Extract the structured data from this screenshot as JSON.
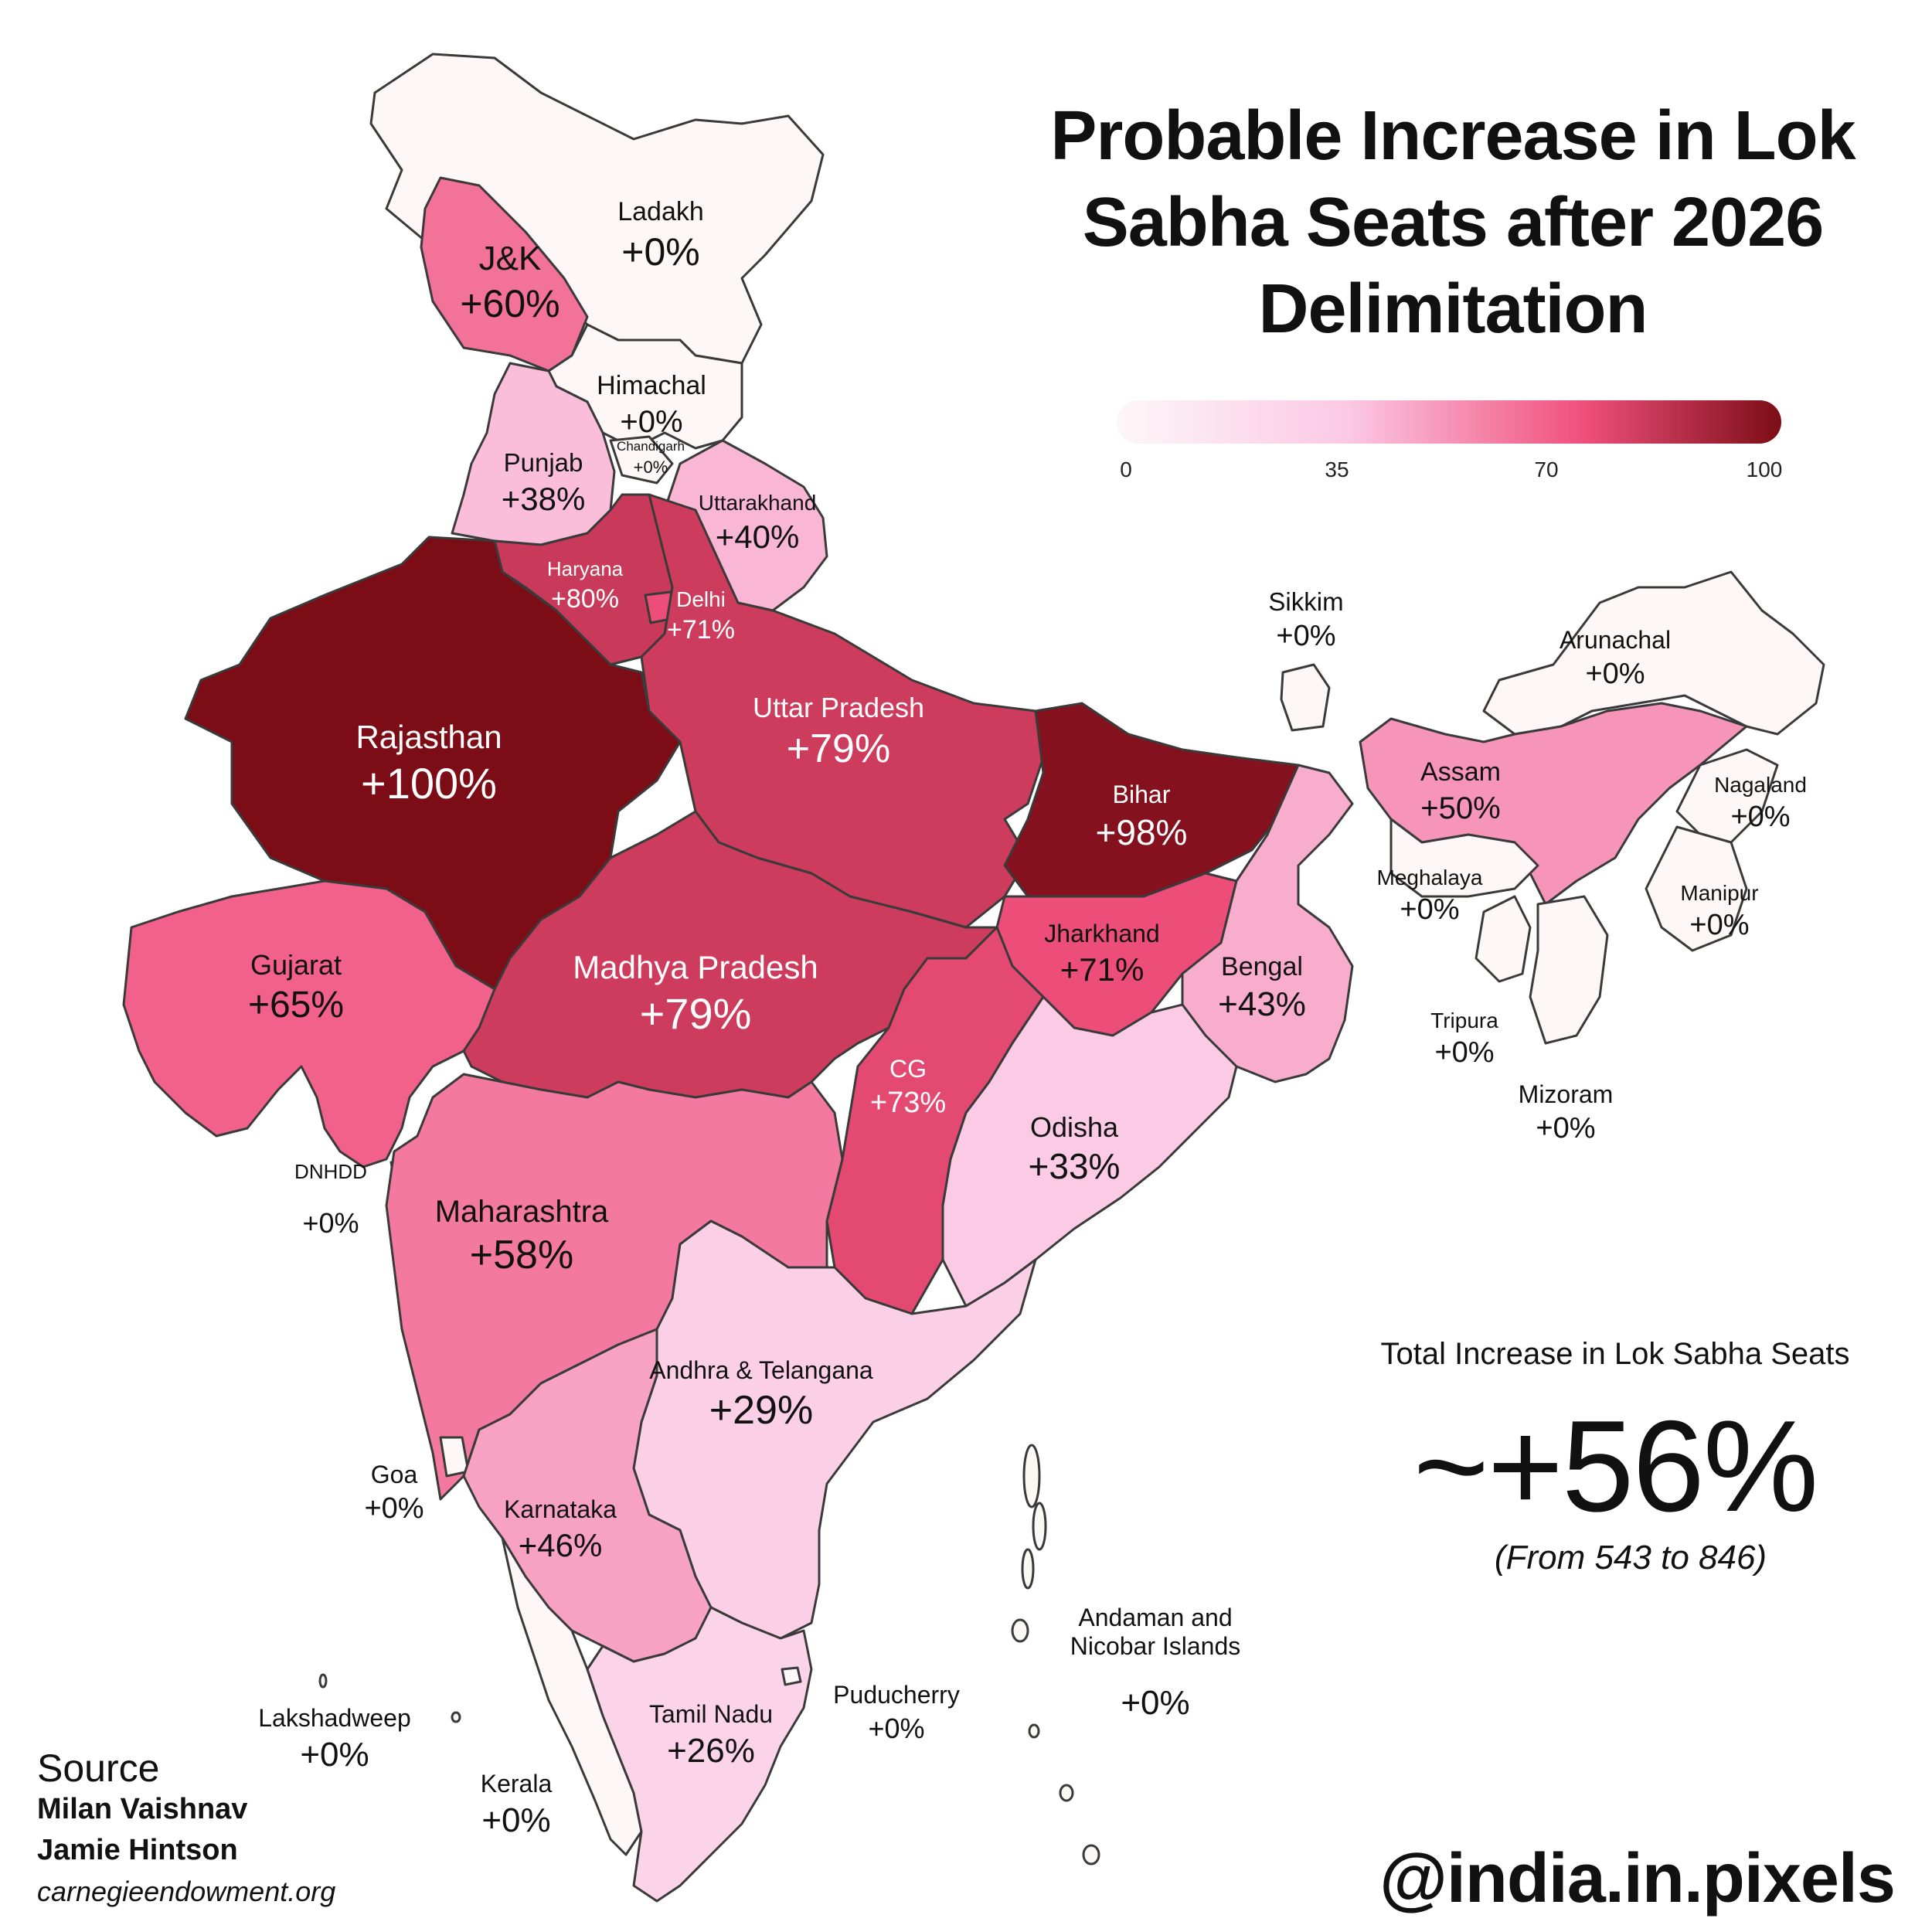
{
  "title": "Probable Increase in Lok Sabha Seats after 2026 Delimitation",
  "legend": {
    "ticks": [
      "0",
      "35",
      "70",
      "100"
    ],
    "colors": [
      "#fdf7f8",
      "#fbc8e4",
      "#f0507c",
      "#7c0d16"
    ]
  },
  "total": {
    "label": "Total Increase in Lok Sabha Seats",
    "value": "~+56%",
    "detail": "(From 543 to 846)"
  },
  "source": {
    "heading": "Source",
    "authors": [
      "Milan Vaishnav",
      "Jamie Hintson"
    ],
    "site": "carnegieendowment.org"
  },
  "handle": "@india.in.pixels",
  "regions": [
    {
      "name": "Ladakh",
      "pct": "+0%",
      "value": 0
    },
    {
      "name": "J&K",
      "pct": "+60%",
      "value": 60
    },
    {
      "name": "Himachal",
      "pct": "+0%",
      "value": 0
    },
    {
      "name": "Chandigarh",
      "pct": "+0%",
      "value": 0
    },
    {
      "name": "Punjab",
      "pct": "+38%",
      "value": 38
    },
    {
      "name": "Uttarakhand",
      "pct": "+40%",
      "value": 40
    },
    {
      "name": "Haryana",
      "pct": "+80%",
      "value": 80
    },
    {
      "name": "Delhi",
      "pct": "+71%",
      "value": 71
    },
    {
      "name": "Rajasthan",
      "pct": "+100%",
      "value": 100
    },
    {
      "name": "Uttar Pradesh",
      "pct": "+79%",
      "value": 79
    },
    {
      "name": "Bihar",
      "pct": "+98%",
      "value": 98
    },
    {
      "name": "Sikkim",
      "pct": "+0%",
      "value": 0
    },
    {
      "name": "Arunachal",
      "pct": "+0%",
      "value": 0
    },
    {
      "name": "Assam",
      "pct": "+50%",
      "value": 50
    },
    {
      "name": "Nagaland",
      "pct": "+0%",
      "value": 0
    },
    {
      "name": "Meghalaya",
      "pct": "+0%",
      "value": 0
    },
    {
      "name": "Manipur",
      "pct": "+0%",
      "value": 0
    },
    {
      "name": "Tripura",
      "pct": "+0%",
      "value": 0
    },
    {
      "name": "Mizoram",
      "pct": "+0%",
      "value": 0
    },
    {
      "name": "Jharkhand",
      "pct": "+71%",
      "value": 71
    },
    {
      "name": "Bengal",
      "pct": "+43%",
      "value": 43
    },
    {
      "name": "Gujarat",
      "pct": "+65%",
      "value": 65
    },
    {
      "name": "Madhya Pradesh",
      "pct": "+79%",
      "value": 79
    },
    {
      "name": "CG",
      "pct": "+73%",
      "value": 73
    },
    {
      "name": "Odisha",
      "pct": "+33%",
      "value": 33
    },
    {
      "name": "DNHDD",
      "pct": "+0%",
      "value": 0
    },
    {
      "name": "Maharashtra",
      "pct": "+58%",
      "value": 58
    },
    {
      "name": "Andhra & Telangana",
      "pct": "+29%",
      "value": 29
    },
    {
      "name": "Goa",
      "pct": "+0%",
      "value": 0
    },
    {
      "name": "Karnataka",
      "pct": "+46%",
      "value": 46
    },
    {
      "name": "Andaman and Nicobar Islands",
      "pct": "+0%",
      "value": 0
    },
    {
      "name": "Puducherry",
      "pct": "+0%",
      "value": 0
    },
    {
      "name": "Lakshadweep",
      "pct": "+0%",
      "value": 0
    },
    {
      "name": "Tamil Nadu",
      "pct": "+26%",
      "value": 26
    },
    {
      "name": "Kerala",
      "pct": "+0%",
      "value": 0
    }
  ]
}
